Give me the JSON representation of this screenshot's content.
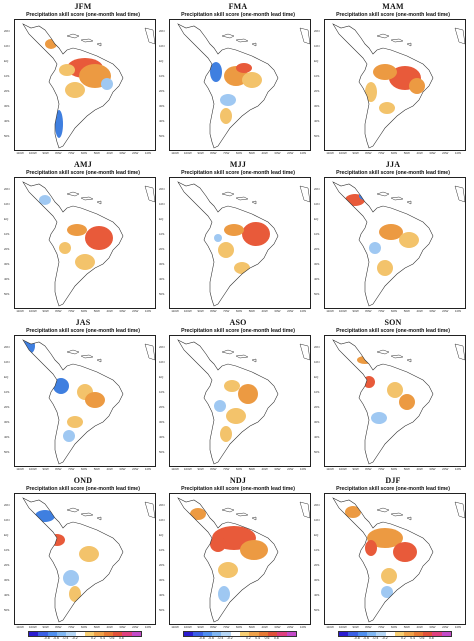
{
  "subtitle": "Precipitation skill score (one-month lead time)",
  "panels": [
    {
      "season": "JFM"
    },
    {
      "season": "FMA"
    },
    {
      "season": "MAM"
    },
    {
      "season": "AMJ"
    },
    {
      "season": "MJJ"
    },
    {
      "season": "JJA"
    },
    {
      "season": "JAS"
    },
    {
      "season": "ASO"
    },
    {
      "season": "SON"
    },
    {
      "season": "OND"
    },
    {
      "season": "NDJ"
    },
    {
      "season": "DJF"
    }
  ],
  "lat_ticks": [
    "20N",
    "10N",
    "EQ",
    "10S",
    "20S",
    "30S",
    "40S",
    "50S"
  ],
  "lon_ticks": [
    "110W",
    "100W",
    "90W",
    "80W",
    "70W",
    "60W",
    "50W",
    "40W",
    "30W",
    "20W",
    "10W"
  ],
  "colorbar": {
    "colors": [
      "#2b1ccf",
      "#3a5fe6",
      "#4f8ff0",
      "#7fb6f2",
      "#b5d6f5",
      "#ffffff",
      "#f7cf73",
      "#efa24a",
      "#e87a35",
      "#e2513a",
      "#e0407f",
      "#c44bc9"
    ],
    "ticks": [
      "-0.8",
      "-0.6",
      "-0.4",
      "-0.2",
      "0.2",
      "0.4",
      "0.6",
      "0.8"
    ]
  },
  "palette": {
    "pos_weak": "#f3c36b",
    "pos_mid": "#ec9a42",
    "pos_strong": "#e85a3a",
    "neg_weak": "#9fc8f2",
    "neg_strong": "#3f7fe0",
    "land_outline": "#333333"
  }
}
